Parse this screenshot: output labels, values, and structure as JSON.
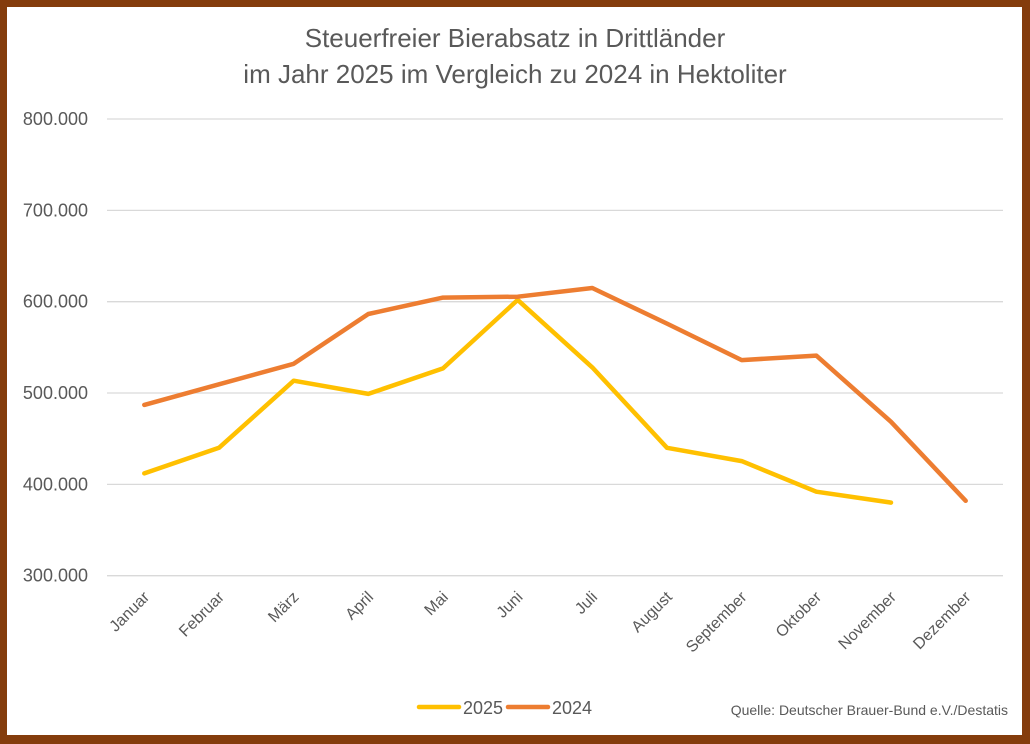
{
  "chart_data": {
    "type": "line",
    "title": "Steuerfreier Bierabsatz in Drittländer",
    "subtitle": "im Jahr 2025 im Vergleich zu 2024 in Hektoliter",
    "xlabel": "",
    "ylabel": "",
    "categories": [
      "Januar",
      "Februar",
      "März",
      "April",
      "Mai",
      "Juni",
      "Juli",
      "August",
      "September",
      "Oktober",
      "November",
      "Dezember"
    ],
    "series": [
      {
        "name": "2025",
        "color": "#ffc000",
        "values": [
          412000,
          440000,
          513500,
          499000,
          527000,
          602000,
          528000,
          440000,
          425500,
          392000,
          380000,
          null
        ]
      },
      {
        "name": "2024",
        "color": "#ed7d31",
        "values": [
          487000,
          509500,
          532000,
          586500,
          604500,
          605500,
          615000,
          576000,
          536000,
          541000,
          468500,
          382000
        ]
      }
    ],
    "ylim": [
      300000,
      800000
    ],
    "yticks": [
      300000,
      400000,
      500000,
      600000,
      700000,
      800000
    ],
    "ytick_labels": [
      "300.000",
      "400.000",
      "500.000",
      "600.000",
      "700.000",
      "800.000"
    ],
    "grid": true,
    "legend_position": "bottom",
    "source": "Quelle: Deutscher Brauer-Bund e.V./Destatis"
  },
  "frame_color": "#843c0c",
  "grid_color": "#d9d9d9",
  "text_color": "#595959"
}
